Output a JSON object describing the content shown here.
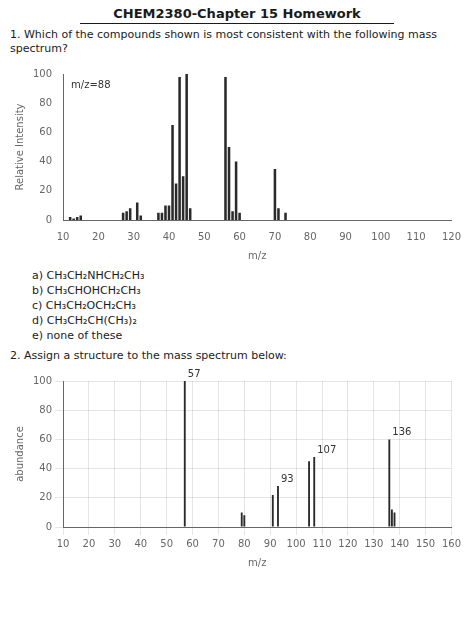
{
  "title": "CHEM2380-Chapter 15 Homework",
  "chart_data": [
    {
      "type": "bar",
      "title": "1. Which of the compounds shown is most consistent with the following mass spectrum?",
      "xlabel": "m/z",
      "ylabel": "Relative Intensity",
      "x": [
        12,
        13,
        14,
        15,
        27,
        28,
        29,
        31,
        32,
        37,
        38,
        39,
        40,
        41,
        42,
        43,
        44,
        45,
        46,
        56,
        57,
        58,
        59,
        60,
        70,
        71,
        73
      ],
      "values": [
        2,
        1,
        2,
        3,
        5,
        6,
        8,
        12,
        3,
        5,
        5,
        10,
        10,
        65,
        25,
        98,
        30,
        100,
        8,
        98,
        50,
        6,
        40,
        5,
        35,
        8,
        5
      ],
      "color": "#2a2a2a",
      "xlim": [
        10,
        120
      ],
      "ylim": [
        0,
        100
      ],
      "xticks": [
        10,
        20,
        30,
        40,
        50,
        60,
        70,
        80,
        90,
        100,
        110,
        120
      ],
      "yticks": [
        0,
        20,
        40,
        60,
        80,
        100
      ],
      "grid": false,
      "annotations": [
        {
          "text": "m/z=88"
        }
      ],
      "choices": [
        "a)  CH₃CH₂NHCH₂CH₃",
        "b)  CH₃CHOHCH₂CH₃",
        "c)  CH₃CH₂OCH₂CH₃",
        "d)  CH₃CH₂CH(CH₃)₂",
        "e)  none of these"
      ]
    },
    {
      "type": "bar",
      "title": "2.  Assign a structure to the mass spectrum below:",
      "xlabel": "m/z",
      "ylabel": "abundance",
      "x": [
        57,
        79,
        80,
        91,
        93,
        105,
        107,
        136,
        137,
        138
      ],
      "values": [
        100,
        10,
        8,
        22,
        28,
        45,
        48,
        60,
        12,
        10
      ],
      "color": "#2a2a2a",
      "xlim": [
        10,
        160
      ],
      "ylim": [
        0,
        100
      ],
      "xticks": [
        10,
        20,
        30,
        40,
        50,
        60,
        70,
        80,
        90,
        100,
        110,
        120,
        130,
        140,
        150,
        160
      ],
      "yticks": [
        0,
        20,
        40,
        60,
        80,
        100
      ],
      "grid": true,
      "annotations": [
        {
          "x": 57,
          "y": 100,
          "text": "57"
        },
        {
          "x": 93,
          "y": 28,
          "text": "93"
        },
        {
          "x": 107,
          "y": 48,
          "text": "107"
        },
        {
          "x": 136,
          "y": 60,
          "text": "136"
        }
      ]
    }
  ]
}
